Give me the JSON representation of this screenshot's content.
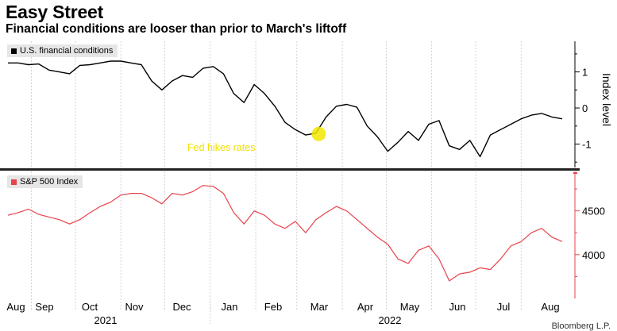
{
  "title": "Easy Street",
  "subtitle": "Financial conditions are looser than prior to March's liftoff",
  "source_label": "Bloomberg L.P.",
  "colors": {
    "fci_line": "#000000",
    "spx_line": "#e8424a",
    "axis_line": "#e8424a",
    "annotation_text": "#f0e000",
    "annotation_marker": "#f2e600",
    "grid": "#c8c8c8",
    "divider": "#222222"
  },
  "chart_data": [
    {
      "type": "line",
      "legend": "U.S. financial conditions",
      "ylabel": "Index level",
      "y_ticks": [
        1,
        0,
        -1
      ],
      "ylim": [
        -1.65,
        1.85
      ],
      "grid": "vertical",
      "annotation": {
        "text": "Fed hikes rates",
        "x": "2022-03-16",
        "y": -0.72
      },
      "x": [
        "2021-08-16",
        "2021-08-23",
        "2021-08-30",
        "2021-09-06",
        "2021-09-13",
        "2021-09-20",
        "2021-09-27",
        "2021-10-04",
        "2021-10-11",
        "2021-10-18",
        "2021-10-25",
        "2021-11-01",
        "2021-11-08",
        "2021-11-15",
        "2021-11-22",
        "2021-11-29",
        "2021-12-06",
        "2021-12-13",
        "2021-12-20",
        "2021-12-27",
        "2022-01-03",
        "2022-01-10",
        "2022-01-17",
        "2022-01-24",
        "2022-01-31",
        "2022-02-07",
        "2022-02-14",
        "2022-02-21",
        "2022-02-28",
        "2022-03-07",
        "2022-03-14",
        "2022-03-21",
        "2022-03-28",
        "2022-04-04",
        "2022-04-11",
        "2022-04-18",
        "2022-04-25",
        "2022-05-02",
        "2022-05-09",
        "2022-05-16",
        "2022-05-23",
        "2022-05-30",
        "2022-06-06",
        "2022-06-13",
        "2022-06-20",
        "2022-06-27",
        "2022-07-04",
        "2022-07-11",
        "2022-07-18",
        "2022-07-25",
        "2022-08-01",
        "2022-08-08",
        "2022-08-15",
        "2022-08-22",
        "2022-08-29"
      ],
      "values": [
        1.25,
        1.25,
        1.2,
        1.22,
        1.05,
        1.0,
        0.95,
        1.18,
        1.2,
        1.25,
        1.3,
        1.3,
        1.25,
        1.2,
        0.75,
        0.5,
        0.75,
        0.9,
        0.85,
        1.1,
        1.15,
        0.95,
        0.4,
        0.15,
        0.65,
        0.4,
        0.05,
        -0.4,
        -0.6,
        -0.75,
        -0.7,
        -0.25,
        0.05,
        0.1,
        0.02,
        -0.5,
        -0.8,
        -1.2,
        -0.95,
        -0.65,
        -0.9,
        -0.45,
        -0.35,
        -1.05,
        -1.15,
        -0.9,
        -1.35,
        -0.75,
        -0.6,
        -0.45,
        -0.3,
        -0.2,
        -0.15,
        -0.25,
        -0.3
      ]
    },
    {
      "type": "line",
      "legend": "S&P 500 Index",
      "y_ticks": [
        4500,
        4000
      ],
      "ylim": [
        3500,
        4950
      ],
      "grid": "vertical",
      "x": [
        "2021-08-16",
        "2021-08-23",
        "2021-08-30",
        "2021-09-06",
        "2021-09-13",
        "2021-09-20",
        "2021-09-27",
        "2021-10-04",
        "2021-10-11",
        "2021-10-18",
        "2021-10-25",
        "2021-11-01",
        "2021-11-08",
        "2021-11-15",
        "2021-11-22",
        "2021-11-29",
        "2021-12-06",
        "2021-12-13",
        "2021-12-20",
        "2021-12-27",
        "2022-01-03",
        "2022-01-10",
        "2022-01-17",
        "2022-01-24",
        "2022-01-31",
        "2022-02-07",
        "2022-02-14",
        "2022-02-21",
        "2022-02-28",
        "2022-03-07",
        "2022-03-14",
        "2022-03-21",
        "2022-03-28",
        "2022-04-04",
        "2022-04-11",
        "2022-04-18",
        "2022-04-25",
        "2022-05-02",
        "2022-05-09",
        "2022-05-16",
        "2022-05-23",
        "2022-05-30",
        "2022-06-06",
        "2022-06-13",
        "2022-06-20",
        "2022-06-27",
        "2022-07-04",
        "2022-07-11",
        "2022-07-18",
        "2022-07-25",
        "2022-08-01",
        "2022-08-08",
        "2022-08-15",
        "2022-08-22",
        "2022-08-29"
      ],
      "values": [
        4450,
        4480,
        4520,
        4460,
        4430,
        4400,
        4350,
        4400,
        4480,
        4550,
        4600,
        4680,
        4700,
        4700,
        4650,
        4580,
        4700,
        4680,
        4720,
        4790,
        4780,
        4700,
        4480,
        4350,
        4500,
        4450,
        4350,
        4300,
        4380,
        4250,
        4400,
        4480,
        4550,
        4500,
        4400,
        4300,
        4200,
        4120,
        3950,
        3900,
        4050,
        4100,
        3950,
        3700,
        3780,
        3800,
        3850,
        3830,
        3950,
        4100,
        4150,
        4250,
        4300,
        4200,
        4150
      ]
    }
  ],
  "x_axis": {
    "months": [
      "Aug",
      "Sep",
      "Oct",
      "Nov",
      "Dec",
      "Jan",
      "Feb",
      "Mar",
      "Apr",
      "May",
      "Jun",
      "Jul",
      "Aug"
    ],
    "years": [
      "2021",
      "2022"
    ]
  }
}
